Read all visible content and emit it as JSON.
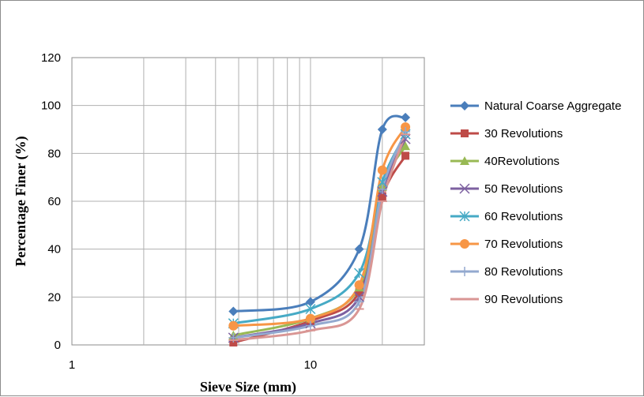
{
  "chart_data": {
    "type": "line",
    "x_scale": "log",
    "grid": true,
    "legend_position": "right",
    "xlabel": "Sieve Size (mm)",
    "ylabel": "Percentage Finer (%)",
    "xlim": [
      1,
      30
    ],
    "ylim": [
      0,
      120
    ],
    "x_tick_labels": [
      "1",
      "10"
    ],
    "y_tick_labels": [
      "0",
      "20",
      "40",
      "60",
      "80",
      "100",
      "120"
    ],
    "x": [
      4.75,
      10,
      16,
      20,
      25
    ],
    "series": [
      {
        "name": "Natural Coarse Aggregate",
        "values": [
          14,
          18,
          40,
          90,
          95
        ],
        "color": "#4a7ebb",
        "marker": "diamond"
      },
      {
        "name": "30 Revolutions",
        "values": [
          1,
          10,
          22,
          62,
          79
        ],
        "color": "#be4b48",
        "marker": "square"
      },
      {
        "name": "40Revolutions",
        "values": [
          4,
          11,
          24,
          66,
          83
        ],
        "color": "#98b954",
        "marker": "triangle"
      },
      {
        "name": "50 Revolutions",
        "values": [
          3,
          9,
          20,
          64,
          86
        ],
        "color": "#7d60a0",
        "marker": "x"
      },
      {
        "name": "60 Revolutions",
        "values": [
          9,
          15,
          30,
          68,
          88
        ],
        "color": "#46aac5",
        "marker": "asterisk"
      },
      {
        "name": "70 Revolutions",
        "values": [
          8,
          11,
          25,
          73,
          91
        ],
        "color": "#f79646",
        "marker": "circle"
      },
      {
        "name": "80 Revolutions",
        "values": [
          3,
          8,
          18,
          65,
          89
        ],
        "color": "#93a9cf",
        "marker": "plus"
      },
      {
        "name": "90 Revolutions",
        "values": [
          2,
          6,
          15,
          60,
          88
        ],
        "color": "#d99694",
        "marker": "dash"
      }
    ]
  }
}
